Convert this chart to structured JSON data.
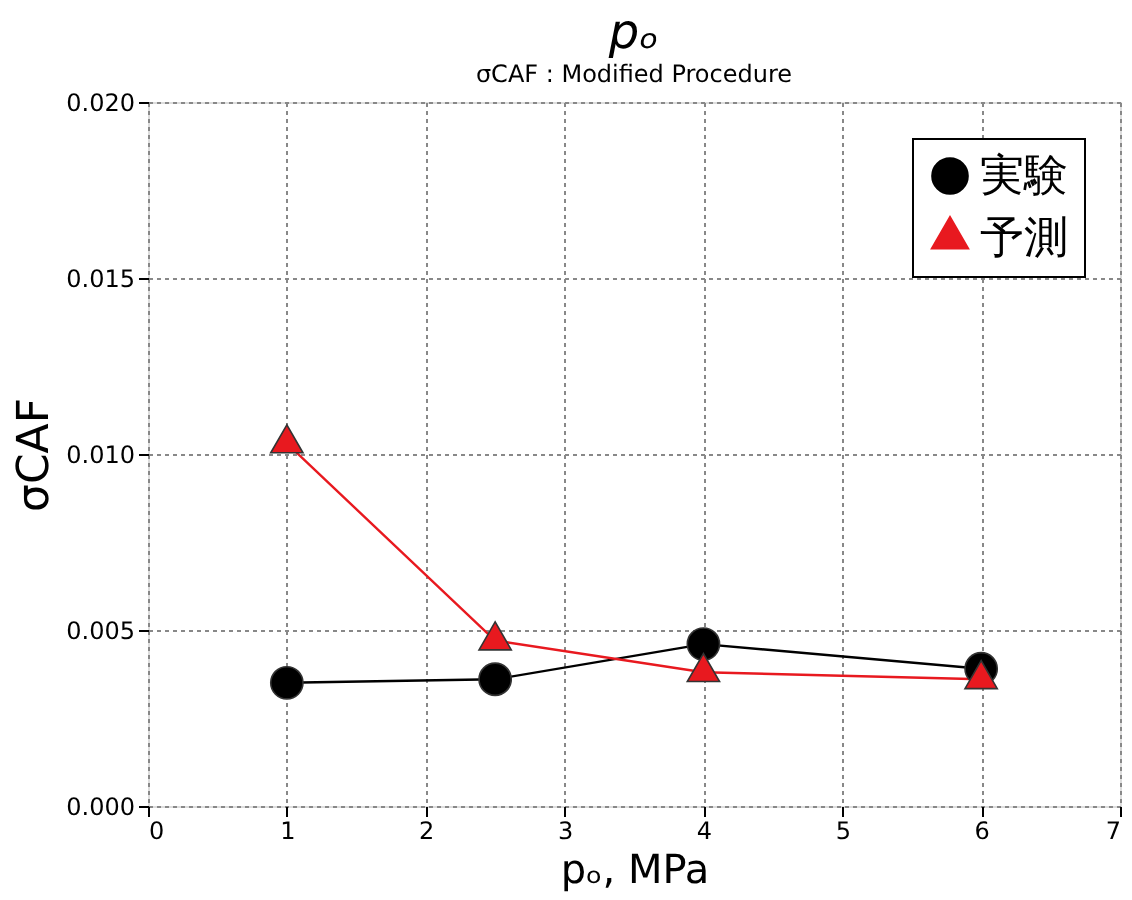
{
  "chart_data": {
    "type": "line",
    "title": "pₒ",
    "subtitle": "σCAF : Modified Procedure",
    "xlabel": "pₒ, MPa",
    "ylabel": "σCAF",
    "x": [
      1,
      2.5,
      4,
      6
    ],
    "series": [
      {
        "name": "実験",
        "color": "#000000",
        "marker": "circle",
        "values": [
          0.0035,
          0.0036,
          0.0046,
          0.0039
        ]
      },
      {
        "name": "予測",
        "color": "#e8191f",
        "marker": "triangle",
        "values": [
          0.0103,
          0.0047,
          0.0038,
          0.0036
        ]
      }
    ],
    "xlim": [
      0,
      7
    ],
    "xticks": [
      0,
      1,
      2,
      3,
      4,
      5,
      6,
      7
    ],
    "ylim": [
      0,
      0.02
    ],
    "yticks": [
      {
        "value": 0,
        "label": "0.000"
      },
      {
        "value": 0.005,
        "label": "0.005"
      },
      {
        "value": 0.01,
        "label": "0.010"
      },
      {
        "value": 0.015,
        "label": "0.015"
      },
      {
        "value": 0.02,
        "label": "0.020"
      }
    ],
    "grid": true,
    "legend": "top right",
    "line_style": "solid"
  }
}
